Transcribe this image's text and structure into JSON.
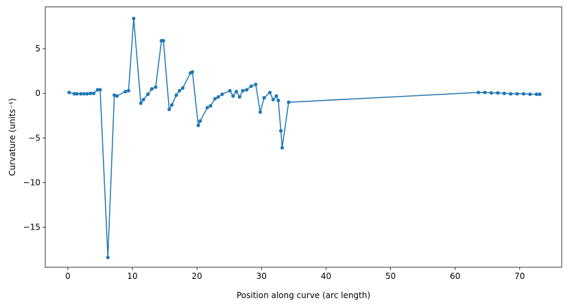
{
  "chart_data": {
    "type": "line",
    "title": "",
    "xlabel": "Position along curve (arc length)",
    "ylabel": "Curvature (units⁻¹)",
    "xlim": [
      -3.5,
      76.5
    ],
    "ylim": [
      -19.5,
      9.7
    ],
    "xticks": [
      0,
      10,
      20,
      30,
      40,
      50,
      60,
      70
    ],
    "yticks": [
      -15,
      -10,
      -5,
      0,
      5
    ],
    "grid": false,
    "legend": "none",
    "series": [
      {
        "color": "#1f77b4",
        "marker": "circle",
        "x": [
          0.2,
          1.0,
          1.4,
          2.0,
          2.5,
          3.0,
          3.5,
          4.0,
          4.6,
          5.0,
          6.2,
          7.2,
          7.6,
          8.9,
          9.4,
          10.2,
          11.3,
          11.7,
          12.4,
          13.0,
          13.6,
          14.5,
          14.8,
          15.7,
          16.1,
          16.8,
          17.3,
          17.8,
          19.0,
          19.3,
          20.2,
          20.5,
          21.6,
          22.1,
          22.8,
          23.3,
          23.9,
          25.1,
          25.6,
          26.1,
          26.6,
          27.1,
          27.7,
          28.4,
          29.1,
          29.8,
          30.4,
          31.3,
          31.8,
          32.3,
          32.6,
          33.0,
          33.2,
          34.2,
          63.6,
          64.6,
          65.6,
          66.6,
          67.6,
          68.6,
          69.6,
          70.6,
          71.6,
          72.6,
          73.1
        ],
        "y": [
          0.1,
          -0.05,
          -0.05,
          -0.05,
          -0.05,
          -0.05,
          0.0,
          0.0,
          0.4,
          0.4,
          -18.4,
          -0.2,
          -0.3,
          0.2,
          0.3,
          8.4,
          -1.1,
          -0.7,
          -0.1,
          0.5,
          0.7,
          5.9,
          5.9,
          -1.8,
          -1.3,
          -0.2,
          0.3,
          0.6,
          2.3,
          2.4,
          -3.6,
          -3.1,
          -1.6,
          -1.4,
          -0.6,
          -0.4,
          -0.1,
          0.3,
          -0.3,
          0.2,
          -0.4,
          0.3,
          0.4,
          0.8,
          1.0,
          -2.1,
          -0.5,
          0.1,
          -0.7,
          -0.3,
          -0.8,
          -4.2,
          -6.1,
          -1.0,
          0.1,
          0.1,
          0.05,
          0.05,
          0.0,
          -0.05,
          -0.05,
          -0.05,
          -0.1,
          -0.1,
          -0.1
        ]
      }
    ]
  }
}
